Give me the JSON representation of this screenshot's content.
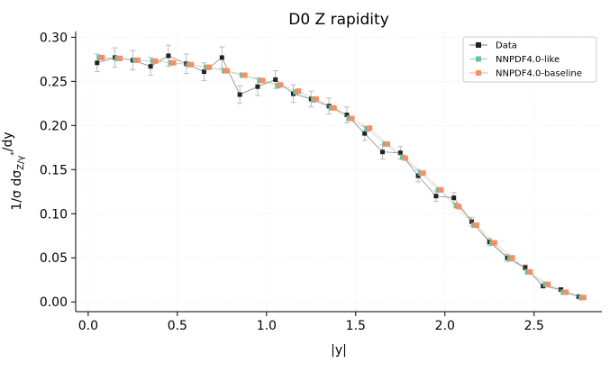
{
  "chart_data": {
    "type": "scatter",
    "title": "D0 Z rapidity",
    "xlabel": "|y|",
    "ylabel": "1/σ dσ_{Z/γ*}/dy",
    "xlim": [
      -0.07,
      2.88
    ],
    "ylim": [
      -0.011,
      0.3065
    ],
    "xticks": [
      0.0,
      0.5,
      1.0,
      1.5,
      2.0,
      2.5
    ],
    "xtick_labels": [
      "0.0",
      "0.5",
      "1.0",
      "1.5",
      "2.0",
      "2.5"
    ],
    "yticks": [
      0.0,
      0.05,
      0.1,
      0.15,
      0.2,
      0.25,
      0.3
    ],
    "ytick_labels": [
      "0.00",
      "0.05",
      "0.10",
      "0.15",
      "0.20",
      "0.25",
      "0.30"
    ],
    "grid": true,
    "legend_position": "top-right",
    "x": [
      0.05,
      0.15,
      0.25,
      0.35,
      0.45,
      0.55,
      0.65,
      0.75,
      0.85,
      0.95,
      1.05,
      1.15,
      1.25,
      1.35,
      1.45,
      1.55,
      1.65,
      1.75,
      1.85,
      1.95,
      2.05,
      2.15,
      2.25,
      2.35,
      2.45,
      2.55,
      2.65,
      2.75
    ],
    "series": [
      {
        "name": "Data",
        "color": "#222222",
        "values": [
          0.271,
          0.277,
          0.274,
          0.267,
          0.279,
          0.27,
          0.261,
          0.277,
          0.235,
          0.244,
          0.252,
          0.236,
          0.23,
          0.222,
          0.212,
          0.191,
          0.17,
          0.169,
          0.143,
          0.12,
          0.118,
          0.091,
          0.068,
          0.05,
          0.039,
          0.018,
          0.014,
          0.006
        ],
        "errors": [
          0.01,
          0.011,
          0.011,
          0.01,
          0.012,
          0.011,
          0.01,
          0.012,
          0.01,
          0.01,
          0.01,
          0.01,
          0.009,
          0.009,
          0.009,
          0.008,
          0.008,
          0.007,
          0.007,
          0.006,
          0.006,
          0.005,
          0.004,
          0.004,
          0.003,
          0.002,
          0.002,
          0.001
        ]
      },
      {
        "name": "NNPDF4.0-like",
        "color": "#66c2a5",
        "values": [
          0.277,
          0.276,
          0.274,
          0.273,
          0.271,
          0.269,
          0.266,
          0.262,
          0.257,
          0.251,
          0.245,
          0.238,
          0.229,
          0.22,
          0.208,
          0.196,
          0.179,
          0.164,
          0.146,
          0.127,
          0.109,
          0.087,
          0.067,
          0.049,
          0.034,
          0.02,
          0.011,
          0.005
        ]
      },
      {
        "name": "NNPDF4.0-baseline",
        "color": "#fc8d62",
        "values": [
          0.277,
          0.276,
          0.274,
          0.273,
          0.271,
          0.269,
          0.266,
          0.262,
          0.257,
          0.251,
          0.246,
          0.239,
          0.23,
          0.22,
          0.208,
          0.197,
          0.179,
          0.163,
          0.146,
          0.127,
          0.108,
          0.087,
          0.067,
          0.05,
          0.034,
          0.02,
          0.011,
          0.005
        ]
      }
    ]
  }
}
